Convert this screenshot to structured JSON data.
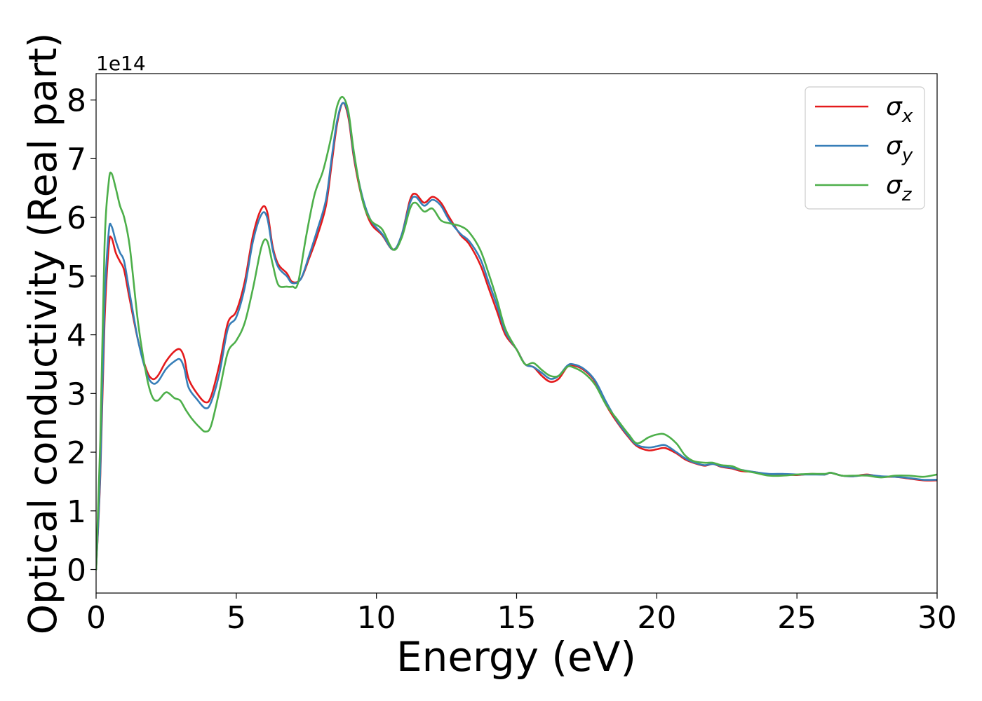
{
  "chart_data": {
    "type": "line",
    "xlabel": "Energy (eV)",
    "ylabel": "Optical conductivity (Real part)",
    "y_offset_label": "1e14",
    "xlim": [
      0,
      30
    ],
    "ylim": [
      -0.4,
      8.45
    ],
    "x_ticks": [
      0,
      5,
      10,
      15,
      20,
      25,
      30
    ],
    "x_tick_labels": [
      "0",
      "5",
      "10",
      "15",
      "20",
      "25",
      "30"
    ],
    "y_ticks": [
      0,
      1,
      2,
      3,
      4,
      5,
      6,
      7,
      8
    ],
    "y_tick_labels": [
      "0",
      "1",
      "2",
      "3",
      "4",
      "5",
      "6",
      "7",
      "8"
    ],
    "legend_position": "top-right",
    "grid": false,
    "series": [
      {
        "name": "σx",
        "label_main": "σ",
        "label_sub": "x",
        "color": "#e41a1c",
        "points": [
          [
            0,
            0
          ],
          [
            0.15,
            1.6
          ],
          [
            0.3,
            4.2
          ],
          [
            0.45,
            5.5
          ],
          [
            0.55,
            5.65
          ],
          [
            0.7,
            5.4
          ],
          [
            0.85,
            5.25
          ],
          [
            1.0,
            5.1
          ],
          [
            1.2,
            4.6
          ],
          [
            1.5,
            3.9
          ],
          [
            1.8,
            3.4
          ],
          [
            2.0,
            3.25
          ],
          [
            2.2,
            3.3
          ],
          [
            2.5,
            3.55
          ],
          [
            2.8,
            3.72
          ],
          [
            3.0,
            3.75
          ],
          [
            3.15,
            3.6
          ],
          [
            3.3,
            3.25
          ],
          [
            3.6,
            3.0
          ],
          [
            3.9,
            2.85
          ],
          [
            4.1,
            2.95
          ],
          [
            4.4,
            3.5
          ],
          [
            4.7,
            4.2
          ],
          [
            5.0,
            4.4
          ],
          [
            5.3,
            4.9
          ],
          [
            5.6,
            5.7
          ],
          [
            5.9,
            6.15
          ],
          [
            6.1,
            6.1
          ],
          [
            6.3,
            5.5
          ],
          [
            6.5,
            5.2
          ],
          [
            6.8,
            5.05
          ],
          [
            7.0,
            4.9
          ],
          [
            7.3,
            4.95
          ],
          [
            7.6,
            5.3
          ],
          [
            7.9,
            5.7
          ],
          [
            8.2,
            6.2
          ],
          [
            8.4,
            6.9
          ],
          [
            8.6,
            7.6
          ],
          [
            8.8,
            7.95
          ],
          [
            9.0,
            7.7
          ],
          [
            9.2,
            7.0
          ],
          [
            9.5,
            6.3
          ],
          [
            9.8,
            5.9
          ],
          [
            10.2,
            5.7
          ],
          [
            10.6,
            5.45
          ],
          [
            10.9,
            5.7
          ],
          [
            11.2,
            6.3
          ],
          [
            11.4,
            6.4
          ],
          [
            11.7,
            6.25
          ],
          [
            12.0,
            6.35
          ],
          [
            12.3,
            6.25
          ],
          [
            12.6,
            6.0
          ],
          [
            13.0,
            5.7
          ],
          [
            13.3,
            5.55
          ],
          [
            13.7,
            5.2
          ],
          [
            14.0,
            4.8
          ],
          [
            14.3,
            4.4
          ],
          [
            14.6,
            4.0
          ],
          [
            15.0,
            3.75
          ],
          [
            15.3,
            3.5
          ],
          [
            15.6,
            3.45
          ],
          [
            15.9,
            3.3
          ],
          [
            16.2,
            3.2
          ],
          [
            16.5,
            3.25
          ],
          [
            16.8,
            3.45
          ],
          [
            17.0,
            3.48
          ],
          [
            17.4,
            3.4
          ],
          [
            17.8,
            3.2
          ],
          [
            18.2,
            2.8
          ],
          [
            18.6,
            2.5
          ],
          [
            19.0,
            2.25
          ],
          [
            19.3,
            2.1
          ],
          [
            19.7,
            2.03
          ],
          [
            20.0,
            2.05
          ],
          [
            20.3,
            2.07
          ],
          [
            20.7,
            1.98
          ],
          [
            21.0,
            1.88
          ],
          [
            21.3,
            1.82
          ],
          [
            21.7,
            1.77
          ],
          [
            22.0,
            1.8
          ],
          [
            22.3,
            1.75
          ],
          [
            22.7,
            1.72
          ],
          [
            23.0,
            1.68
          ],
          [
            23.5,
            1.66
          ],
          [
            24.0,
            1.62
          ],
          [
            24.5,
            1.62
          ],
          [
            25.0,
            1.61
          ],
          [
            25.5,
            1.63
          ],
          [
            26.0,
            1.62
          ],
          [
            26.2,
            1.65
          ],
          [
            26.6,
            1.6
          ],
          [
            27.0,
            1.59
          ],
          [
            27.5,
            1.62
          ],
          [
            28.0,
            1.58
          ],
          [
            28.5,
            1.58
          ],
          [
            29.0,
            1.55
          ],
          [
            29.5,
            1.52
          ],
          [
            30.0,
            1.52
          ]
        ]
      },
      {
        "name": "σy",
        "label_main": "σ",
        "label_sub": "y",
        "color": "#377eb8",
        "points": [
          [
            0,
            0
          ],
          [
            0.15,
            1.7
          ],
          [
            0.3,
            4.5
          ],
          [
            0.45,
            5.75
          ],
          [
            0.55,
            5.85
          ],
          [
            0.7,
            5.6
          ],
          [
            0.85,
            5.4
          ],
          [
            1.0,
            5.25
          ],
          [
            1.2,
            4.7
          ],
          [
            1.5,
            3.9
          ],
          [
            1.8,
            3.35
          ],
          [
            2.0,
            3.18
          ],
          [
            2.2,
            3.2
          ],
          [
            2.5,
            3.42
          ],
          [
            2.8,
            3.55
          ],
          [
            3.0,
            3.58
          ],
          [
            3.15,
            3.42
          ],
          [
            3.3,
            3.1
          ],
          [
            3.6,
            2.9
          ],
          [
            3.9,
            2.75
          ],
          [
            4.1,
            2.85
          ],
          [
            4.4,
            3.35
          ],
          [
            4.7,
            4.1
          ],
          [
            5.0,
            4.3
          ],
          [
            5.3,
            4.8
          ],
          [
            5.6,
            5.6
          ],
          [
            5.9,
            6.05
          ],
          [
            6.1,
            6.0
          ],
          [
            6.3,
            5.45
          ],
          [
            6.5,
            5.15
          ],
          [
            6.8,
            5.0
          ],
          [
            7.0,
            4.88
          ],
          [
            7.3,
            4.95
          ],
          [
            7.6,
            5.35
          ],
          [
            7.9,
            5.8
          ],
          [
            8.2,
            6.3
          ],
          [
            8.4,
            7.0
          ],
          [
            8.6,
            7.65
          ],
          [
            8.8,
            7.95
          ],
          [
            9.0,
            7.75
          ],
          [
            9.2,
            7.05
          ],
          [
            9.5,
            6.35
          ],
          [
            9.8,
            5.95
          ],
          [
            10.2,
            5.72
          ],
          [
            10.6,
            5.45
          ],
          [
            10.9,
            5.7
          ],
          [
            11.2,
            6.25
          ],
          [
            11.4,
            6.35
          ],
          [
            11.7,
            6.2
          ],
          [
            12.0,
            6.3
          ],
          [
            12.3,
            6.2
          ],
          [
            12.6,
            5.95
          ],
          [
            13.0,
            5.72
          ],
          [
            13.3,
            5.6
          ],
          [
            13.7,
            5.3
          ],
          [
            14.0,
            4.9
          ],
          [
            14.3,
            4.5
          ],
          [
            14.6,
            4.05
          ],
          [
            15.0,
            3.75
          ],
          [
            15.3,
            3.5
          ],
          [
            15.6,
            3.45
          ],
          [
            15.9,
            3.35
          ],
          [
            16.2,
            3.25
          ],
          [
            16.5,
            3.3
          ],
          [
            16.8,
            3.47
          ],
          [
            17.0,
            3.5
          ],
          [
            17.4,
            3.42
          ],
          [
            17.8,
            3.22
          ],
          [
            18.2,
            2.85
          ],
          [
            18.6,
            2.52
          ],
          [
            19.0,
            2.27
          ],
          [
            19.3,
            2.12
          ],
          [
            19.7,
            2.08
          ],
          [
            20.0,
            2.1
          ],
          [
            20.3,
            2.12
          ],
          [
            20.7,
            2.0
          ],
          [
            21.0,
            1.9
          ],
          [
            21.3,
            1.83
          ],
          [
            21.7,
            1.78
          ],
          [
            22.0,
            1.8
          ],
          [
            22.3,
            1.76
          ],
          [
            22.7,
            1.73
          ],
          [
            23.0,
            1.7
          ],
          [
            23.5,
            1.66
          ],
          [
            24.0,
            1.63
          ],
          [
            24.5,
            1.63
          ],
          [
            25.0,
            1.62
          ],
          [
            25.5,
            1.62
          ],
          [
            26.0,
            1.62
          ],
          [
            26.2,
            1.65
          ],
          [
            26.6,
            1.6
          ],
          [
            27.0,
            1.59
          ],
          [
            27.5,
            1.61
          ],
          [
            28.0,
            1.59
          ],
          [
            28.5,
            1.58
          ],
          [
            29.0,
            1.56
          ],
          [
            29.5,
            1.53
          ],
          [
            30.0,
            1.53
          ]
        ]
      },
      {
        "name": "σz",
        "label_main": "σ",
        "label_sub": "z",
        "color": "#4daf4a",
        "points": [
          [
            0,
            0
          ],
          [
            0.15,
            2.2
          ],
          [
            0.3,
            5.5
          ],
          [
            0.45,
            6.6
          ],
          [
            0.55,
            6.75
          ],
          [
            0.7,
            6.5
          ],
          [
            0.85,
            6.2
          ],
          [
            1.0,
            6.0
          ],
          [
            1.2,
            5.5
          ],
          [
            1.5,
            4.2
          ],
          [
            1.8,
            3.3
          ],
          [
            2.0,
            2.95
          ],
          [
            2.2,
            2.88
          ],
          [
            2.5,
            3.02
          ],
          [
            2.8,
            2.92
          ],
          [
            3.0,
            2.88
          ],
          [
            3.2,
            2.72
          ],
          [
            3.4,
            2.58
          ],
          [
            3.7,
            2.42
          ],
          [
            3.9,
            2.35
          ],
          [
            4.1,
            2.45
          ],
          [
            4.4,
            3.05
          ],
          [
            4.7,
            3.7
          ],
          [
            5.0,
            3.9
          ],
          [
            5.3,
            4.2
          ],
          [
            5.6,
            4.8
          ],
          [
            5.9,
            5.5
          ],
          [
            6.1,
            5.6
          ],
          [
            6.3,
            5.2
          ],
          [
            6.5,
            4.85
          ],
          [
            6.8,
            4.82
          ],
          [
            7.0,
            4.82
          ],
          [
            7.2,
            4.88
          ],
          [
            7.5,
            5.7
          ],
          [
            7.8,
            6.4
          ],
          [
            8.1,
            6.8
          ],
          [
            8.4,
            7.4
          ],
          [
            8.6,
            7.9
          ],
          [
            8.8,
            8.05
          ],
          [
            9.0,
            7.8
          ],
          [
            9.2,
            7.1
          ],
          [
            9.5,
            6.3
          ],
          [
            9.8,
            5.95
          ],
          [
            10.2,
            5.8
          ],
          [
            10.6,
            5.45
          ],
          [
            10.9,
            5.65
          ],
          [
            11.2,
            6.15
          ],
          [
            11.4,
            6.25
          ],
          [
            11.7,
            6.1
          ],
          [
            12.0,
            6.15
          ],
          [
            12.3,
            5.95
          ],
          [
            12.6,
            5.9
          ],
          [
            13.0,
            5.85
          ],
          [
            13.3,
            5.75
          ],
          [
            13.7,
            5.45
          ],
          [
            14.0,
            5.05
          ],
          [
            14.3,
            4.6
          ],
          [
            14.6,
            4.1
          ],
          [
            15.0,
            3.75
          ],
          [
            15.3,
            3.5
          ],
          [
            15.6,
            3.52
          ],
          [
            15.9,
            3.4
          ],
          [
            16.2,
            3.3
          ],
          [
            16.5,
            3.3
          ],
          [
            16.8,
            3.45
          ],
          [
            17.0,
            3.45
          ],
          [
            17.4,
            3.35
          ],
          [
            17.8,
            3.15
          ],
          [
            18.2,
            2.8
          ],
          [
            18.6,
            2.55
          ],
          [
            19.0,
            2.3
          ],
          [
            19.3,
            2.15
          ],
          [
            19.7,
            2.25
          ],
          [
            20.0,
            2.3
          ],
          [
            20.3,
            2.3
          ],
          [
            20.7,
            2.15
          ],
          [
            21.0,
            1.95
          ],
          [
            21.3,
            1.85
          ],
          [
            21.7,
            1.82
          ],
          [
            22.0,
            1.82
          ],
          [
            22.3,
            1.78
          ],
          [
            22.7,
            1.76
          ],
          [
            23.0,
            1.7
          ],
          [
            23.5,
            1.65
          ],
          [
            24.0,
            1.6
          ],
          [
            24.5,
            1.6
          ],
          [
            25.0,
            1.62
          ],
          [
            25.5,
            1.63
          ],
          [
            26.0,
            1.63
          ],
          [
            26.2,
            1.65
          ],
          [
            26.6,
            1.6
          ],
          [
            27.0,
            1.6
          ],
          [
            27.5,
            1.6
          ],
          [
            28.0,
            1.57
          ],
          [
            28.5,
            1.6
          ],
          [
            29.0,
            1.6
          ],
          [
            29.5,
            1.58
          ],
          [
            30.0,
            1.62
          ]
        ]
      }
    ]
  }
}
